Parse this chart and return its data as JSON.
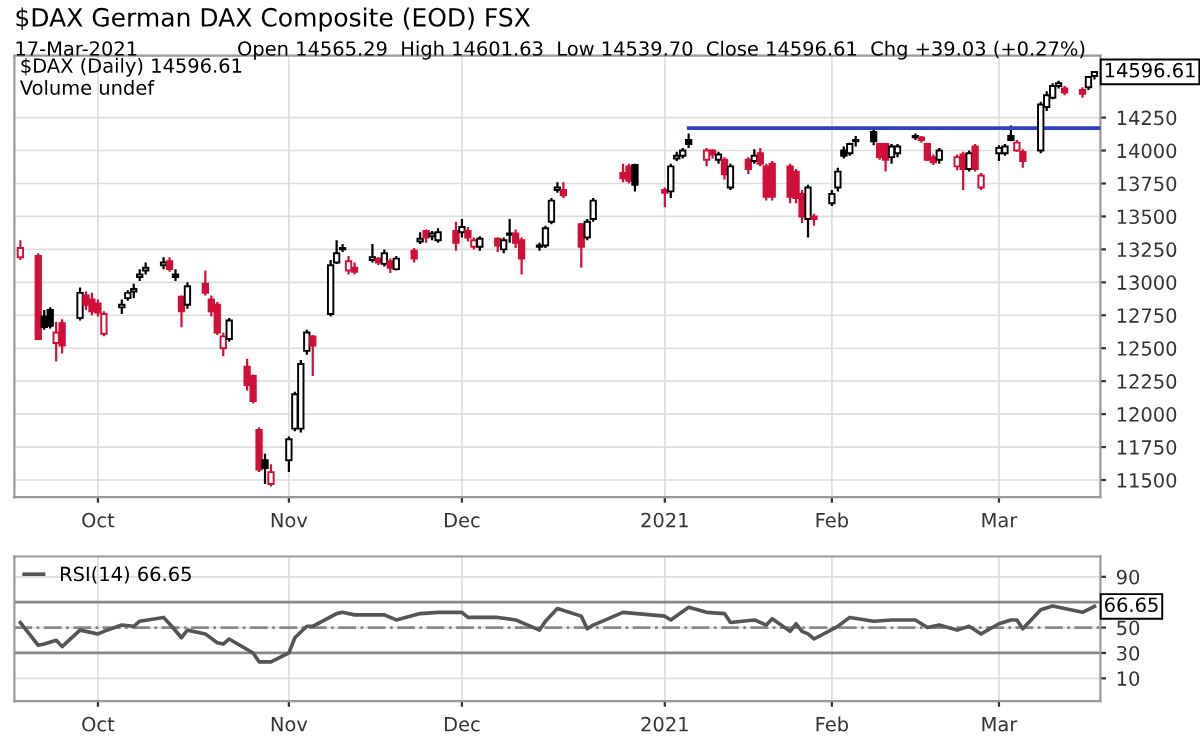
{
  "chart_data": [
    {
      "type": "candlestick",
      "title": "$DAX German DAX Composite (EOD) FSX",
      "subtitle": "17-Mar-2021",
      "annotations": [
        "Open 14565.29  High 14601.63  Low 14539.70  Close 14596.61  Chg +39.03 (+0.27%)",
        "$DAX (Daily) 14596.61",
        "Volume undef",
        {
          "text": "14596.61",
          "x": "2021-03-17",
          "y": 14596.61
        }
      ],
      "x": [
        "2020-09-18",
        "2020-09-21",
        "2020-09-22",
        "2020-09-23",
        "2020-09-24",
        "2020-09-25",
        "2020-09-28",
        "2020-09-29",
        "2020-09-30",
        "2020-10-01",
        "2020-10-02",
        "2020-10-05",
        "2020-10-06",
        "2020-10-07",
        "2020-10-08",
        "2020-10-09",
        "2020-10-12",
        "2020-10-13",
        "2020-10-14",
        "2020-10-15",
        "2020-10-16",
        "2020-10-19",
        "2020-10-20",
        "2020-10-21",
        "2020-10-22",
        "2020-10-23",
        "2020-10-26",
        "2020-10-27",
        "2020-10-28",
        "2020-10-29",
        "2020-10-30",
        "2020-11-02",
        "2020-11-03",
        "2020-11-04",
        "2020-11-05",
        "2020-11-06",
        "2020-11-09",
        "2020-11-10",
        "2020-11-11",
        "2020-11-12",
        "2020-11-13",
        "2020-11-16",
        "2020-11-17",
        "2020-11-18",
        "2020-11-19",
        "2020-11-20",
        "2020-11-23",
        "2020-11-24",
        "2020-11-25",
        "2020-11-26",
        "2020-11-27",
        "2020-11-30",
        "2020-12-01",
        "2020-12-02",
        "2020-12-03",
        "2020-12-04",
        "2020-12-07",
        "2020-12-08",
        "2020-12-09",
        "2020-12-10",
        "2020-12-11",
        "2020-12-14",
        "2020-12-15",
        "2020-12-16",
        "2020-12-17",
        "2020-12-18",
        "2020-12-21",
        "2020-12-22",
        "2020-12-23",
        "2020-12-28",
        "2020-12-29",
        "2020-12-30",
        "2021-01-04",
        "2021-01-05",
        "2021-01-06",
        "2021-01-07",
        "2021-01-08",
        "2021-01-11",
        "2021-01-12",
        "2021-01-13",
        "2021-01-14",
        "2021-01-15",
        "2021-01-18",
        "2021-01-19",
        "2021-01-20",
        "2021-01-21",
        "2021-01-22",
        "2021-01-25",
        "2021-01-26",
        "2021-01-27",
        "2021-01-28",
        "2021-01-29",
        "2021-02-01",
        "2021-02-02",
        "2021-02-03",
        "2021-02-04",
        "2021-02-05",
        "2021-02-08",
        "2021-02-09",
        "2021-02-10",
        "2021-02-11",
        "2021-02-12",
        "2021-02-15",
        "2021-02-16",
        "2021-02-17",
        "2021-02-18",
        "2021-02-19",
        "2021-02-22",
        "2021-02-23",
        "2021-02-24",
        "2021-02-25",
        "2021-02-26",
        "2021-03-01",
        "2021-03-02",
        "2021-03-03",
        "2021-03-04",
        "2021-03-05",
        "2021-03-08",
        "2021-03-09",
        "2021-03-10",
        "2021-03-11",
        "2021-03-12",
        "2021-03-15",
        "2021-03-16",
        "2021-03-17"
      ],
      "ohlc": [
        [
          13190,
          13320,
          13170,
          13260
        ],
        [
          13200,
          13220,
          12560,
          12570
        ],
        [
          12740,
          12790,
          12640,
          12660
        ],
        [
          12790,
          12810,
          12650,
          12670
        ],
        [
          12540,
          12700,
          12400,
          12620
        ],
        [
          12690,
          12720,
          12460,
          12520
        ],
        [
          12730,
          12960,
          12710,
          12920
        ],
        [
          12900,
          12930,
          12790,
          12830
        ],
        [
          12870,
          12920,
          12750,
          12780
        ],
        [
          12840,
          12870,
          12740,
          12770
        ],
        [
          12610,
          12780,
          12590,
          12760
        ],
        [
          12810,
          12870,
          12760,
          12830
        ],
        [
          12880,
          12940,
          12860,
          12920
        ],
        [
          12930,
          12990,
          12880,
          12950
        ],
        [
          13040,
          13100,
          13010,
          13060
        ],
        [
          13090,
          13150,
          13060,
          13110
        ],
        [
          13130,
          13190,
          13100,
          13150
        ],
        [
          13160,
          13190,
          13080,
          13100
        ],
        [
          13060,
          13100,
          13010,
          13040
        ],
        [
          12890,
          12900,
          12660,
          12780
        ],
        [
          12830,
          13000,
          12800,
          12970
        ],
        [
          12990,
          13090,
          12900,
          12920
        ],
        [
          12870,
          12900,
          12740,
          12780
        ],
        [
          12830,
          12850,
          12600,
          12620
        ],
        [
          12500,
          12620,
          12440,
          12590
        ],
        [
          12570,
          12730,
          12550,
          12710
        ],
        [
          12360,
          12420,
          12180,
          12220
        ],
        [
          12290,
          12300,
          12080,
          12100
        ],
        [
          11880,
          11900,
          11560,
          11580
        ],
        [
          11650,
          11700,
          11470,
          11590
        ],
        [
          11470,
          11620,
          11450,
          11560
        ],
        [
          11650,
          11830,
          11560,
          11810
        ],
        [
          11890,
          12170,
          11870,
          12150
        ],
        [
          11890,
          12410,
          11860,
          12380
        ],
        [
          12480,
          12640,
          12450,
          12620
        ],
        [
          12590,
          12600,
          12290,
          12520
        ],
        [
          12760,
          13170,
          12740,
          13130
        ],
        [
          13150,
          13320,
          13140,
          13220
        ],
        [
          13250,
          13290,
          13230,
          13260
        ],
        [
          13090,
          13200,
          13060,
          13160
        ],
        [
          13110,
          13150,
          13060,
          13080
        ],
        [
          13170,
          13290,
          13150,
          13190
        ],
        [
          13180,
          13190,
          13130,
          13150
        ],
        [
          13140,
          13250,
          13120,
          13220
        ],
        [
          13160,
          13180,
          13070,
          13110
        ],
        [
          13100,
          13200,
          13090,
          13180
        ],
        [
          13240,
          13260,
          13150,
          13180
        ],
        [
          13310,
          13380,
          13290,
          13330
        ],
        [
          13390,
          13400,
          13300,
          13340
        ],
        [
          13350,
          13390,
          13320,
          13370
        ],
        [
          13320,
          13410,
          13300,
          13380
        ],
        [
          13390,
          13460,
          13240,
          13300
        ],
        [
          13380,
          13480,
          13340,
          13420
        ],
        [
          13390,
          13420,
          13310,
          13340
        ],
        [
          13270,
          13340,
          13250,
          13320
        ],
        [
          13270,
          13350,
          13240,
          13330
        ],
        [
          13330,
          13340,
          13230,
          13280
        ],
        [
          13250,
          13340,
          13220,
          13320
        ],
        [
          13360,
          13480,
          13300,
          13370
        ],
        [
          13370,
          13400,
          13260,
          13300
        ],
        [
          13320,
          13340,
          13060,
          13180
        ],
        [
          13270,
          13300,
          13240,
          13280
        ],
        [
          13280,
          13430,
          13260,
          13410
        ],
        [
          13460,
          13640,
          13440,
          13620
        ],
        [
          13700,
          13760,
          13680,
          13720
        ],
        [
          13700,
          13760,
          13640,
          13660
        ],
        [
          13440,
          13450,
          13110,
          13270
        ],
        [
          13340,
          13480,
          13320,
          13460
        ],
        [
          13480,
          13640,
          13460,
          13620
        ],
        [
          13830,
          13900,
          13760,
          13790
        ],
        [
          13880,
          13900,
          13750,
          13770
        ],
        [
          13890,
          13900,
          13690,
          13740
        ],
        [
          13700,
          13720,
          13570,
          13680
        ],
        [
          13690,
          13900,
          13640,
          13880
        ],
        [
          13940,
          13990,
          13920,
          13960
        ],
        [
          13960,
          14020,
          13940,
          14000
        ],
        [
          14080,
          14130,
          14020,
          14050
        ],
        [
          13930,
          14020,
          13880,
          14000
        ],
        [
          14000,
          14010,
          13940,
          13970
        ],
        [
          13930,
          13990,
          13900,
          13970
        ],
        [
          13930,
          13950,
          13780,
          13820
        ],
        [
          13720,
          13900,
          13700,
          13880
        ],
        [
          13930,
          13950,
          13820,
          13860
        ],
        [
          13920,
          14010,
          13900,
          13960
        ],
        [
          13980,
          14020,
          13880,
          13900
        ],
        [
          13880,
          13900,
          13620,
          13650
        ],
        [
          13900,
          13920,
          13620,
          13650
        ],
        [
          13880,
          13900,
          13600,
          13650
        ],
        [
          13840,
          13860,
          13600,
          13640
        ],
        [
          13670,
          13700,
          13450,
          13500
        ],
        [
          13480,
          13740,
          13340,
          13720
        ],
        [
          13500,
          13520,
          13430,
          13480
        ],
        [
          13600,
          13700,
          13580,
          13670
        ],
        [
          13720,
          13870,
          13690,
          13840
        ],
        [
          14000,
          14030,
          13940,
          13960
        ],
        [
          13980,
          14060,
          13960,
          14050
        ],
        [
          14080,
          14110,
          14030,
          14070
        ],
        [
          14140,
          14170,
          14040,
          14070
        ],
        [
          14050,
          14060,
          13930,
          13950
        ],
        [
          14050,
          14060,
          13840,
          13930
        ],
        [
          13950,
          14050,
          13900,
          14030
        ],
        [
          13980,
          14050,
          13950,
          14030
        ],
        [
          14110,
          14130,
          14080,
          14100
        ],
        [
          14100,
          14110,
          14060,
          14080
        ],
        [
          14050,
          14060,
          13920,
          13930
        ],
        [
          13950,
          13970,
          13890,
          13910
        ],
        [
          13930,
          14020,
          13900,
          14000
        ],
        [
          13880,
          13970,
          13850,
          13950
        ],
        [
          13970,
          13990,
          13700,
          13860
        ],
        [
          13860,
          14000,
          13840,
          13980
        ],
        [
          14030,
          14050,
          13840,
          13860
        ],
        [
          13720,
          13830,
          13700,
          13810
        ],
        [
          13980,
          14040,
          13920,
          14020
        ],
        [
          13980,
          14050,
          13960,
          14030
        ],
        [
          14110,
          14190,
          14070,
          14080
        ],
        [
          14000,
          14080,
          13990,
          14060
        ],
        [
          13990,
          14010,
          13870,
          13920
        ],
        [
          14000,
          14370,
          13980,
          14350
        ],
        [
          14330,
          14450,
          14300,
          14420
        ],
        [
          14400,
          14510,
          14390,
          14490
        ],
        [
          14490,
          14530,
          14470,
          14510
        ],
        [
          14470,
          14490,
          14420,
          14440
        ],
        [
          14460,
          14480,
          14400,
          14430
        ],
        [
          14480,
          14560,
          14460,
          14557.58
        ],
        [
          14565.29,
          14601.63,
          14539.7,
          14596.61
        ]
      ],
      "colors": [
        "#d0103a",
        "#d0103a",
        "#000000",
        "#000000",
        "#d0103a",
        "#d0103a",
        "#000000",
        "#d0103a",
        "#d0103a",
        "#d0103a",
        "#d0103a",
        "#000000",
        "#000000",
        "#000000",
        "#000000",
        "#000000",
        "#000000",
        "#d0103a",
        "#000000",
        "#d0103a",
        "#000000",
        "#d0103a",
        "#d0103a",
        "#d0103a",
        "#d0103a",
        "#000000",
        "#d0103a",
        "#d0103a",
        "#d0103a",
        "#000000",
        "#d0103a",
        "#000000",
        "#000000",
        "#000000",
        "#000000",
        "#d0103a",
        "#000000",
        "#000000",
        "#000000",
        "#d0103a",
        "#d0103a",
        "#000000",
        "#d0103a",
        "#000000",
        "#d0103a",
        "#000000",
        "#d0103a",
        "#000000",
        "#d0103a",
        "#000000",
        "#000000",
        "#d0103a",
        "#000000",
        "#d0103a",
        "#d0103a",
        "#000000",
        "#d0103a",
        "#000000",
        "#000000",
        "#d0103a",
        "#d0103a",
        "#000000",
        "#000000",
        "#000000",
        "#000000",
        "#d0103a",
        "#d0103a",
        "#000000",
        "#000000",
        "#d0103a",
        "#d0103a",
        "#000000",
        "#d0103a",
        "#000000",
        "#000000",
        "#000000",
        "#000000",
        "#d0103a",
        "#d0103a",
        "#000000",
        "#d0103a",
        "#000000",
        "#d0103a",
        "#000000",
        "#d0103a",
        "#d0103a",
        "#d0103a",
        "#d0103a",
        "#d0103a",
        "#d0103a",
        "#000000",
        "#d0103a",
        "#000000",
        "#000000",
        "#000000",
        "#000000",
        "#000000",
        "#000000",
        "#d0103a",
        "#d0103a",
        "#000000",
        "#000000",
        "#000000",
        "#d0103a",
        "#d0103a",
        "#d0103a",
        "#000000",
        "#d0103a",
        "#d0103a",
        "#000000",
        "#d0103a",
        "#d0103a",
        "#000000",
        "#000000",
        "#000000",
        "#d0103a",
        "#d0103a",
        "#000000",
        "#000000",
        "#000000",
        "#000000",
        "#d0103a",
        "#d0103a",
        "#000000",
        "#000000"
      ],
      "series": [
        {
          "type": "line",
          "color": "#3040c0",
          "x": [
            "2021-01-08",
            "2021-03-18"
          ],
          "values": [
            14170,
            14170
          ]
        }
      ],
      "xlim": [
        "2020-09-17",
        "2021-03-18"
      ],
      "xticks": [
        {
          "value": "2020-10-01",
          "label": "Oct"
        },
        {
          "value": "2020-11-02",
          "label": "Nov"
        },
        {
          "value": "2020-12-01",
          "label": "Dec"
        },
        {
          "value": "2021-01-04",
          "label": "2021"
        },
        {
          "value": "2021-02-01",
          "label": "Feb"
        },
        {
          "value": "2021-03-01",
          "label": "Mar"
        }
      ],
      "ylim": [
        11370,
        14720
      ],
      "yticks": [
        11500,
        11750,
        12000,
        12250,
        12500,
        12750,
        13000,
        13250,
        13500,
        13750,
        14000,
        14250
      ],
      "grid": true
    },
    {
      "type": "line",
      "x": [
        "2020-09-18",
        "2020-09-21",
        "2020-09-22",
        "2020-09-24",
        "2020-09-25",
        "2020-09-28",
        "2020-09-29",
        "2020-10-01",
        "2020-10-02",
        "2020-10-05",
        "2020-10-07",
        "2020-10-08",
        "2020-10-12",
        "2020-10-13",
        "2020-10-15",
        "2020-10-16",
        "2020-10-19",
        "2020-10-21",
        "2020-10-22",
        "2020-10-23",
        "2020-10-27",
        "2020-10-28",
        "2020-10-30",
        "2020-11-02",
        "2020-11-03",
        "2020-11-05",
        "2020-11-06",
        "2020-11-10",
        "2020-11-11",
        "2020-11-13",
        "2020-11-18",
        "2020-11-20",
        "2020-11-24",
        "2020-11-27",
        "2020-12-01",
        "2020-12-02",
        "2020-12-07",
        "2020-12-10",
        "2020-12-14",
        "2020-12-15",
        "2020-12-17",
        "2020-12-21",
        "2020-12-22",
        "2020-12-23",
        "2020-12-28",
        "2021-01-04",
        "2021-01-05",
        "2021-01-08",
        "2021-01-11",
        "2021-01-14",
        "2021-01-15",
        "2021-01-19",
        "2021-01-21",
        "2021-01-22",
        "2021-01-25",
        "2021-01-26",
        "2021-01-27",
        "2021-01-28",
        "2021-01-29",
        "2021-02-02",
        "2021-02-04",
        "2021-02-08",
        "2021-02-11",
        "2021-02-15",
        "2021-02-17",
        "2021-02-19",
        "2021-02-22",
        "2021-02-24",
        "2021-02-26",
        "2021-03-01",
        "2021-03-03",
        "2021-03-04",
        "2021-03-05",
        "2021-03-08",
        "2021-03-10",
        "2021-03-12",
        "2021-03-15",
        "2021-03-17"
      ],
      "series": [
        {
          "name": "RSI(14) 66.65",
          "color": "#555555",
          "values": [
            54,
            36,
            37,
            40,
            35,
            48,
            47,
            45,
            47,
            52,
            51,
            55,
            58,
            53,
            42,
            48,
            45,
            38,
            37,
            41,
            30,
            23,
            23,
            30,
            42,
            51,
            51,
            61,
            62,
            60,
            60,
            56,
            61,
            62,
            62,
            58,
            58,
            56,
            48,
            55,
            65,
            59,
            49,
            52,
            62,
            59,
            56,
            66,
            62,
            61,
            54,
            56,
            52,
            57,
            47,
            53,
            47,
            45,
            41,
            51,
            58,
            55,
            56,
            56,
            50,
            52,
            48,
            51,
            45,
            53,
            56,
            56,
            49,
            64,
            67,
            65,
            62,
            66.65
          ]
        }
      ],
      "annotations": [
        {
          "text": "66.65",
          "x": "2021-03-17",
          "y": 66.65
        }
      ],
      "ref_lines": [
        {
          "axis": "y",
          "value": 70,
          "color": "#888888",
          "line_style": "solid"
        },
        {
          "axis": "y",
          "value": 50,
          "color": "#888888",
          "line_style": "dashed"
        },
        {
          "axis": "y",
          "value": 30,
          "color": "#888888",
          "line_style": "solid"
        }
      ],
      "xlim": [
        "2020-09-17",
        "2021-03-18"
      ],
      "xticks": [
        {
          "value": "2020-10-01",
          "label": "Oct"
        },
        {
          "value": "2020-11-02",
          "label": "Nov"
        },
        {
          "value": "2020-12-01",
          "label": "Dec"
        },
        {
          "value": "2021-01-04",
          "label": "2021"
        },
        {
          "value": "2021-02-01",
          "label": "Feb"
        },
        {
          "value": "2021-03-01",
          "label": "Mar"
        }
      ],
      "ylim": [
        -8,
        106
      ],
      "yticks": [
        10,
        30,
        50,
        90
      ],
      "grid": true,
      "legend": "top left"
    }
  ]
}
